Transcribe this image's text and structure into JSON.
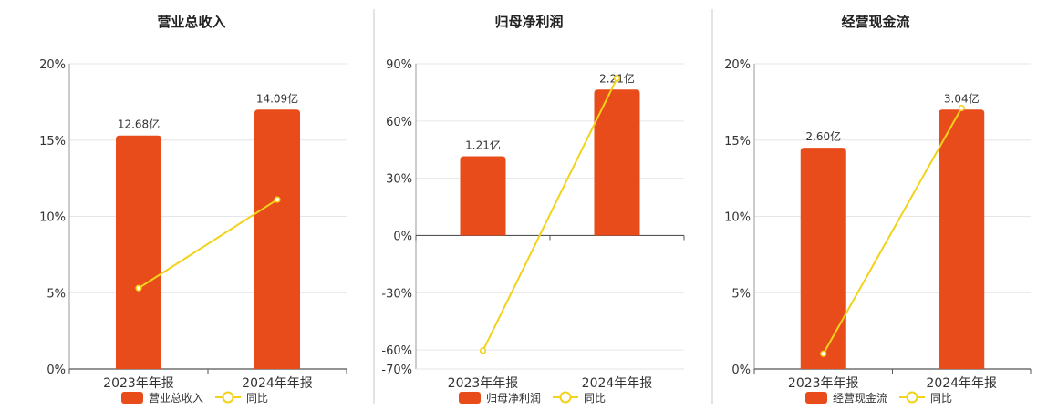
{
  "chart_data": [
    {
      "type": "bar",
      "title": "营业总收入",
      "categories": [
        "2023年年报",
        "2024年年报"
      ],
      "bar_series": {
        "name": "营业总收入",
        "color": "#e84c1b",
        "labels": [
          "12.68亿",
          "14.09亿"
        ]
      },
      "line_series": {
        "name": "同比",
        "color": "#f2d21a",
        "values": [
          5.3,
          11.1
        ]
      },
      "bar_heights_on_axis": [
        15.3,
        17.0
      ],
      "ylim": [
        0,
        20
      ],
      "yticks": [
        "20%",
        "15%",
        "10%",
        "5%",
        "0%"
      ],
      "grid": true,
      "legend": "bottom"
    },
    {
      "type": "bar",
      "title": "归母净利润",
      "categories": [
        "2023年年报",
        "2024年年报"
      ],
      "bar_series": {
        "name": "归母净利润",
        "color": "#e84c1b",
        "labels": [
          "1.21亿",
          "2.21亿"
        ]
      },
      "line_series": {
        "name": "同比",
        "color": "#f2d21a",
        "values": [
          -60.4,
          82.4
        ]
      },
      "bar_heights_on_axis": [
        41.5,
        76.5
      ],
      "ylim": [
        -70,
        90
      ],
      "yticks": [
        "90%",
        "60%",
        "30%",
        "0%",
        "-30%",
        "-60%",
        "-70%"
      ],
      "grid": true,
      "legend": "bottom"
    },
    {
      "type": "bar",
      "title": "经营现金流",
      "categories": [
        "2023年年报",
        "2024年年报"
      ],
      "bar_series": {
        "name": "经营现金流",
        "color": "#e84c1b",
        "labels": [
          "2.60亿",
          "3.04亿"
        ]
      },
      "line_series": {
        "name": "同比",
        "color": "#f2d21a",
        "values": [
          1.0,
          17.1
        ]
      },
      "bar_heights_on_axis": [
        14.5,
        17.0
      ],
      "ylim": [
        0,
        20
      ],
      "yticks": [
        "20%",
        "15%",
        "10%",
        "5%",
        "0%"
      ],
      "grid": true,
      "legend": "bottom"
    }
  ]
}
